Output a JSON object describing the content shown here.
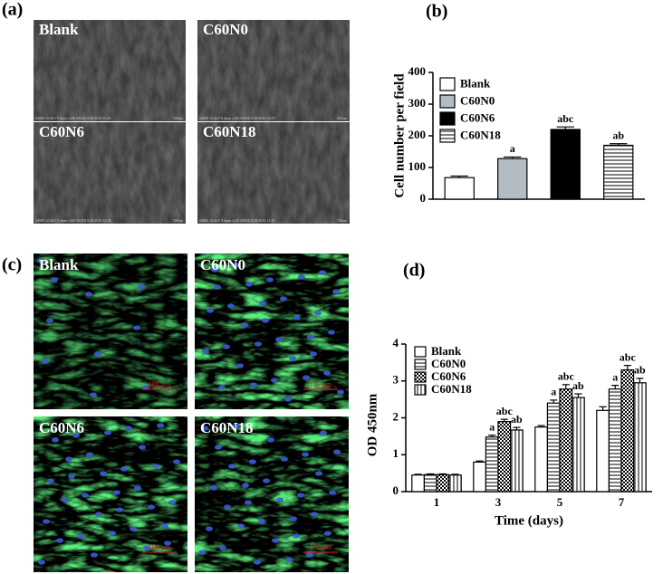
{
  "panels": {
    "a": {
      "label": "(a)",
      "images": [
        "Blank",
        "C60N0",
        "C60N6",
        "C60N18"
      ],
      "footers": [
        "S4800 10.0kV 9.4mm x100 SE(M) 8/28/2019 13:26",
        "S4800 10.0kV 9.4mm x100 SE(M) 8/28/2019 13:09",
        "S4800 10.0kV 9.4mm x100 SE(M) 8/28/2019 13:36",
        "S4800 10.0kV 9.4mm x100 SE(M) 8/28/2019 13:30"
      ],
      "scale": "500um"
    },
    "b": {
      "label": "(b)"
    },
    "c": {
      "label": "(c)",
      "images": [
        "Blank",
        "C60N0",
        "C60N6",
        "C60N18"
      ],
      "scale": "100 μm"
    },
    "d": {
      "label": "(d)"
    }
  },
  "chart_data": [
    {
      "type": "bar",
      "ylabel": "Cell number per field",
      "categories": [
        "Blank",
        "C60N0",
        "C60N6",
        "C60N18"
      ],
      "values": [
        68,
        128,
        220,
        170
      ],
      "errors": [
        5,
        5,
        8,
        5
      ],
      "colors": [
        "#ffffff",
        "#b3bcc2",
        "#000000",
        "#ffffff"
      ],
      "patterns": [
        null,
        null,
        null,
        "horizontal"
      ],
      "annotations": [
        null,
        "a",
        "abc",
        "ab"
      ],
      "ylim": [
        0,
        400
      ],
      "yticks": [
        0,
        100,
        200,
        300,
        400
      ],
      "legend": "upper left"
    },
    {
      "type": "bar",
      "xlabel": "Time (days)",
      "ylabel": "OD 450nm",
      "categories": [
        "1",
        "3",
        "5",
        "7"
      ],
      "series": [
        {
          "name": "Blank",
          "color": "#ffffff",
          "pattern": null,
          "values": [
            0.45,
            0.8,
            1.75,
            2.2
          ],
          "errors": [
            0.02,
            0.03,
            0.04,
            0.1
          ],
          "annotations": [
            null,
            null,
            null,
            null
          ]
        },
        {
          "name": "C60N0",
          "color": "#ffffff",
          "pattern": "horizontal",
          "values": [
            0.46,
            1.48,
            2.4,
            2.78
          ],
          "errors": [
            0.02,
            0.05,
            0.08,
            0.1
          ],
          "annotations": [
            null,
            "a",
            "a",
            "a"
          ]
        },
        {
          "name": "C60N6",
          "color": "#ffffff",
          "pattern": "checker",
          "values": [
            0.46,
            1.9,
            2.78,
            3.3
          ],
          "errors": [
            0.02,
            0.06,
            0.12,
            0.12
          ],
          "annotations": [
            null,
            "abc",
            "abc",
            "abc"
          ]
        },
        {
          "name": "C60N18",
          "color": "#ffffff",
          "pattern": "vertical",
          "values": [
            0.45,
            1.67,
            2.55,
            2.95
          ],
          "errors": [
            0.02,
            0.07,
            0.1,
            0.12
          ],
          "annotations": [
            null,
            "ab",
            "ab",
            "ab"
          ]
        }
      ],
      "ylim": [
        0,
        4
      ],
      "yticks": [
        0,
        1,
        2,
        3,
        4
      ],
      "legend": "upper left"
    }
  ]
}
